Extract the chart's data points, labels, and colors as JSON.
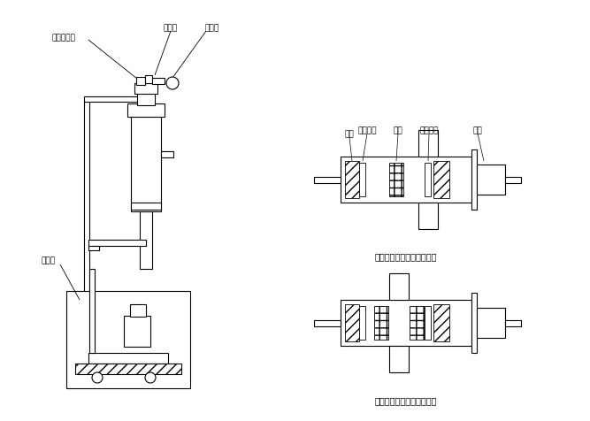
{
  "bg_color": "#ffffff",
  "line_color": "#000000",
  "label_fontsize": 6.5,
  "caption_fontsize": 7,
  "caption_top": "上吸时气动三通阀阀片位置",
  "caption_bottom": "放袋时气动三通阀阀片位置",
  "label_texts_top": [
    "阀板",
    "放气室管",
    "阀杆",
    "密封橡胶",
    "气缸"
  ]
}
